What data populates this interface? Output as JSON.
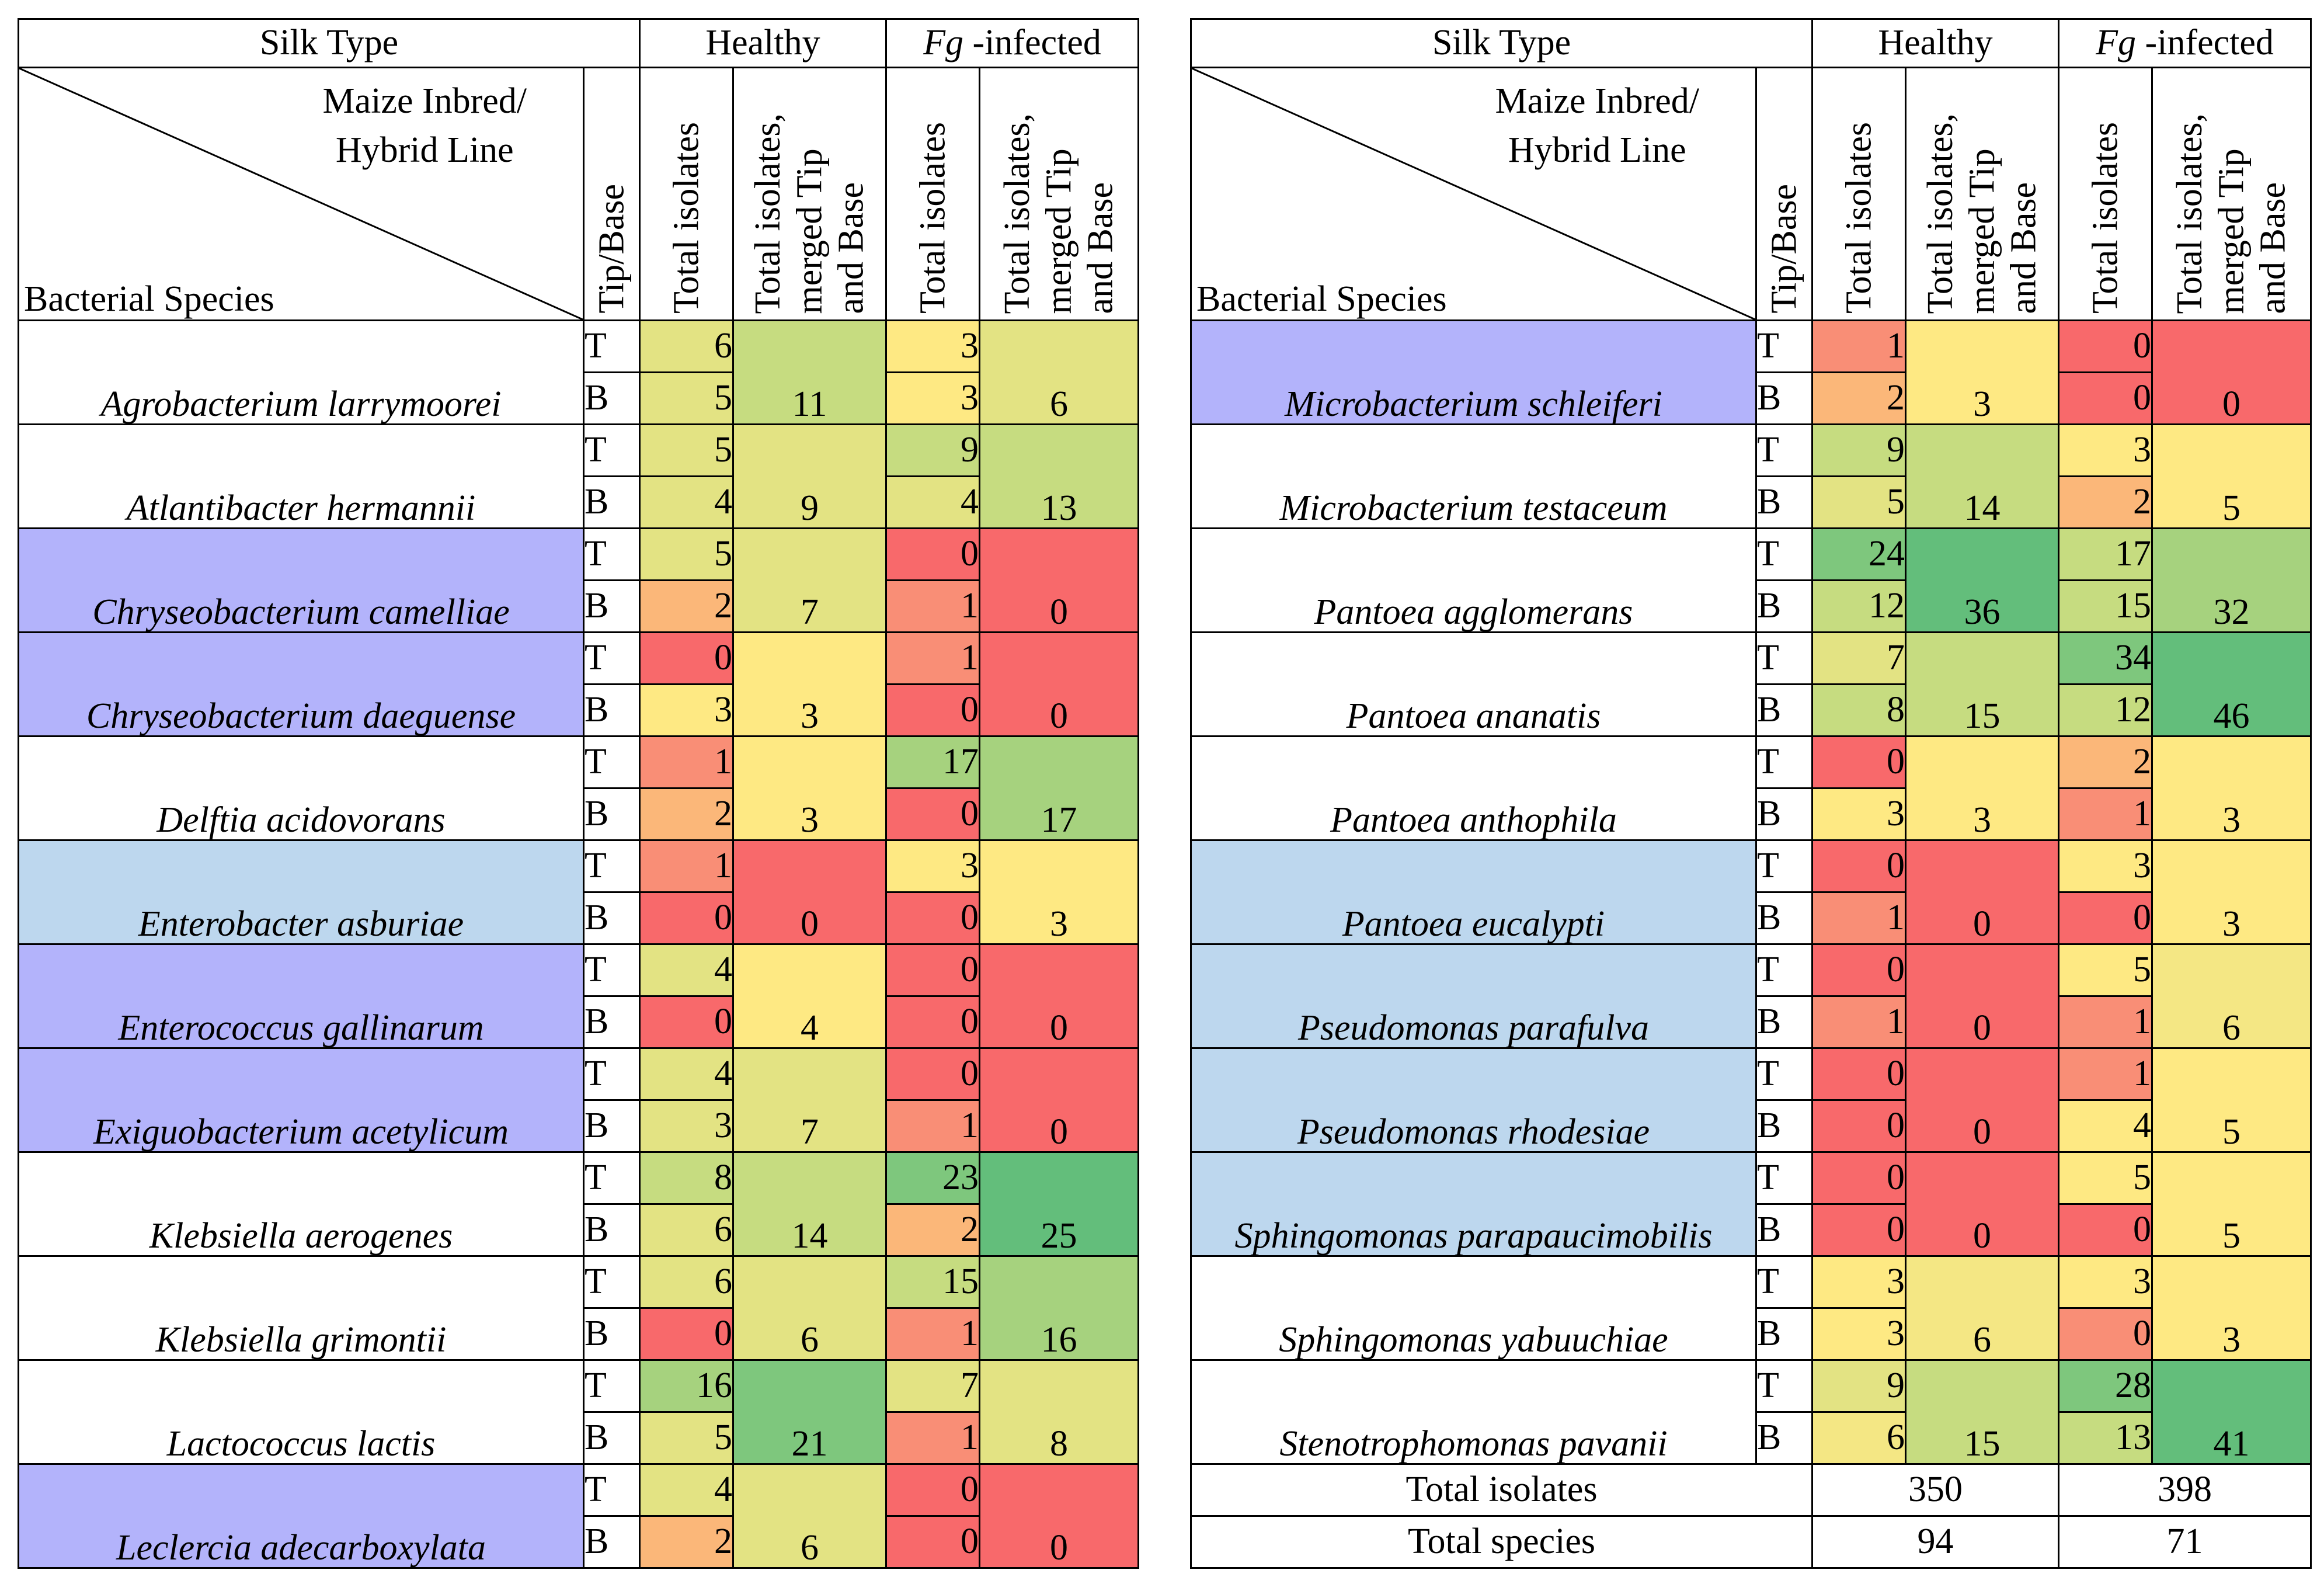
{
  "colors": {
    "red": "#f8696b",
    "orange_red": "#f98e76",
    "orange": "#fbb779",
    "yellow": "#fee983",
    "light_yellow": "#f4e784",
    "yellow_green": "#e3e383",
    "light_green": "#c6dc80",
    "green": "#a6d27e",
    "mid_green": "#7ec77d",
    "dark_green": "#63be7b",
    "purple_highlight": "#b3b3fb",
    "blue_highlight": "#bdd7ee"
  },
  "headers": {
    "silk_type": "Silk Type",
    "healthy": "Healthy",
    "fg_italic": "Fg",
    "fg_rest": " -infected",
    "maize_line1": "Maize Inbred/",
    "maize_line2": "Hybrid Line",
    "bacterial_species": "Bacterial Species",
    "tip_base": "Tip/Base",
    "total_isolates": "Total isolates",
    "merged_line1": "Total isolates,",
    "merged_line2": "merged Tip",
    "merged_line3": "and Base"
  },
  "left_table": {
    "rows": [
      {
        "species": "Agrobacterium larrymoorei",
        "highlight": "none",
        "h_tip": "6",
        "h_base": "5",
        "h_merged": "11",
        "f_tip": "3",
        "f_base": "3",
        "f_merged": "6",
        "c_htip": "yellow_green",
        "c_hbase": "yellow_green",
        "c_hm": "light_green",
        "c_ftip": "yellow",
        "c_fbase": "yellow",
        "c_fm": "yellow_green"
      },
      {
        "species": "Atlantibacter hermannii",
        "highlight": "none",
        "h_tip": "5",
        "h_base": "4",
        "h_merged": "9",
        "f_tip": "9",
        "f_base": "4",
        "f_merged": "13",
        "c_htip": "yellow_green",
        "c_hbase": "yellow_green",
        "c_hm": "yellow_green",
        "c_ftip": "light_green",
        "c_fbase": "yellow_green",
        "c_fm": "light_green"
      },
      {
        "species": "Chryseobacterium camelliae",
        "highlight": "purple",
        "h_tip": "5",
        "h_base": "2",
        "h_merged": "7",
        "f_tip": "0",
        "f_base": "1",
        "f_merged": "0",
        "c_htip": "yellow_green",
        "c_hbase": "orange",
        "c_hm": "yellow_green",
        "c_ftip": "red",
        "c_fbase": "orange_red",
        "c_fm": "red"
      },
      {
        "species": "Chryseobacterium daeguense",
        "highlight": "purple",
        "h_tip": "0",
        "h_base": "3",
        "h_merged": "3",
        "f_tip": "1",
        "f_base": "0",
        "f_merged": "0",
        "c_htip": "red",
        "c_hbase": "yellow",
        "c_hm": "yellow",
        "c_ftip": "orange_red",
        "c_fbase": "red",
        "c_fm": "red"
      },
      {
        "species": "Delftia acidovorans",
        "highlight": "none",
        "h_tip": "1",
        "h_base": "2",
        "h_merged": "3",
        "f_tip": "17",
        "f_base": "0",
        "f_merged": "17",
        "c_htip": "orange_red",
        "c_hbase": "orange",
        "c_hm": "yellow",
        "c_ftip": "green",
        "c_fbase": "red",
        "c_fm": "green"
      },
      {
        "species": "Enterobacter asburiae",
        "highlight": "blue",
        "h_tip": "1",
        "h_base": "0",
        "h_merged": "0",
        "f_tip": "3",
        "f_base": "0",
        "f_merged": "3",
        "c_htip": "orange_red",
        "c_hbase": "red",
        "c_hm": "red",
        "c_ftip": "yellow",
        "c_fbase": "red",
        "c_fm": "yellow"
      },
      {
        "species": "Enterococcus gallinarum",
        "highlight": "purple",
        "h_tip": "4",
        "h_base": "0",
        "h_merged": "4",
        "f_tip": "0",
        "f_base": "0",
        "f_merged": "0",
        "c_htip": "yellow_green",
        "c_hbase": "red",
        "c_hm": "yellow",
        "c_ftip": "red",
        "c_fbase": "red",
        "c_fm": "red"
      },
      {
        "species": "Exiguobacterium acetylicum",
        "highlight": "purple",
        "h_tip": "4",
        "h_base": "3",
        "h_merged": "7",
        "f_tip": "0",
        "f_base": "1",
        "f_merged": "0",
        "c_htip": "yellow_green",
        "c_hbase": "yellow_green",
        "c_hm": "yellow_green",
        "c_ftip": "red",
        "c_fbase": "orange_red",
        "c_fm": "red"
      },
      {
        "species": "Klebsiella aerogenes",
        "highlight": "none",
        "h_tip": "8",
        "h_base": "6",
        "h_merged": "14",
        "f_tip": "23",
        "f_base": "2",
        "f_merged": "25",
        "c_htip": "light_green",
        "c_hbase": "yellow_green",
        "c_hm": "light_green",
        "c_ftip": "mid_green",
        "c_fbase": "orange",
        "c_fm": "dark_green"
      },
      {
        "species": "Klebsiella grimontii",
        "highlight": "none",
        "h_tip": "6",
        "h_base": "0",
        "h_merged": "6",
        "f_tip": "15",
        "f_base": "1",
        "f_merged": "16",
        "c_htip": "yellow_green",
        "c_hbase": "red",
        "c_hm": "yellow_green",
        "c_ftip": "light_green",
        "c_fbase": "orange_red",
        "c_fm": "green"
      },
      {
        "species": "Lactococcus lactis",
        "highlight": "none",
        "h_tip": "16",
        "h_base": "5",
        "h_merged": "21",
        "f_tip": "7",
        "f_base": "1",
        "f_merged": "8",
        "c_htip": "green",
        "c_hbase": "yellow_green",
        "c_hm": "mid_green",
        "c_ftip": "yellow_green",
        "c_fbase": "orange_red",
        "c_fm": "yellow_green"
      },
      {
        "species": "Leclercia adecarboxylata",
        "highlight": "purple",
        "h_tip": "4",
        "h_base": "2",
        "h_merged": "6",
        "f_tip": "0",
        "f_base": "0",
        "f_merged": "0",
        "c_htip": "yellow_green",
        "c_hbase": "orange",
        "c_hm": "yellow_green",
        "c_ftip": "red",
        "c_fbase": "red",
        "c_fm": "red"
      }
    ]
  },
  "right_table": {
    "rows": [
      {
        "species": "Microbacterium schleiferi",
        "highlight": "purple",
        "h_tip": "1",
        "h_base": "2",
        "h_merged": "3",
        "f_tip": "0",
        "f_base": "0",
        "f_merged": "0",
        "c_htip": "orange_red",
        "c_hbase": "orange",
        "c_hm": "yellow",
        "c_ftip": "red",
        "c_fbase": "red",
        "c_fm": "red"
      },
      {
        "species": "Microbacterium testaceum",
        "highlight": "none",
        "h_tip": "9",
        "h_base": "5",
        "h_merged": "14",
        "f_tip": "3",
        "f_base": "2",
        "f_merged": "5",
        "c_htip": "light_green",
        "c_hbase": "yellow_green",
        "c_hm": "light_green",
        "c_ftip": "yellow",
        "c_fbase": "orange",
        "c_fm": "yellow"
      },
      {
        "species": "Pantoea agglomerans",
        "highlight": "none",
        "h_tip": "24",
        "h_base": "12",
        "h_merged": "36",
        "f_tip": "17",
        "f_base": "15",
        "f_merged": "32",
        "c_htip": "mid_green",
        "c_hbase": "light_green",
        "c_hm": "dark_green",
        "c_ftip": "light_green",
        "c_fbase": "light_green",
        "c_fm": "green"
      },
      {
        "species": "Pantoea ananatis",
        "highlight": "none",
        "h_tip": "7",
        "h_base": "8",
        "h_merged": "15",
        "f_tip": "34",
        "f_base": "12",
        "f_merged": "46",
        "c_htip": "yellow_green",
        "c_hbase": "light_green",
        "c_hm": "light_green",
        "c_ftip": "mid_green",
        "c_fbase": "light_green",
        "c_fm": "dark_green"
      },
      {
        "species": "Pantoea anthophila",
        "highlight": "none",
        "h_tip": "0",
        "h_base": "3",
        "h_merged": "3",
        "f_tip": "2",
        "f_base": "1",
        "f_merged": "3",
        "c_htip": "red",
        "c_hbase": "yellow",
        "c_hm": "yellow",
        "c_ftip": "orange",
        "c_fbase": "orange_red",
        "c_fm": "yellow"
      },
      {
        "species": "Pantoea eucalypti",
        "highlight": "blue",
        "h_tip": "0",
        "h_base": "1",
        "h_merged": "0",
        "f_tip": "3",
        "f_base": "0",
        "f_merged": "3",
        "c_htip": "red",
        "c_hbase": "orange_red",
        "c_hm": "red",
        "c_ftip": "yellow",
        "c_fbase": "red",
        "c_fm": "yellow"
      },
      {
        "species": "Pseudomonas parafulva",
        "highlight": "blue",
        "h_tip": "0",
        "h_base": "1",
        "h_merged": "0",
        "f_tip": "5",
        "f_base": "1",
        "f_merged": "6",
        "c_htip": "red",
        "c_hbase": "orange_red",
        "c_hm": "red",
        "c_ftip": "yellow",
        "c_fbase": "orange_red",
        "c_fm": "light_yellow"
      },
      {
        "species": "Pseudomonas rhodesiae",
        "highlight": "blue",
        "h_tip": "0",
        "h_base": "0",
        "h_merged": "0",
        "f_tip": "1",
        "f_base": "4",
        "f_merged": "5",
        "c_htip": "red",
        "c_hbase": "red",
        "c_hm": "red",
        "c_ftip": "orange_red",
        "c_fbase": "yellow",
        "c_fm": "yellow"
      },
      {
        "species": "Sphingomonas parapaucimobilis",
        "highlight": "blue",
        "h_tip": "0",
        "h_base": "0",
        "h_merged": "0",
        "f_tip": "5",
        "f_base": "0",
        "f_merged": "5",
        "c_htip": "red",
        "c_hbase": "red",
        "c_hm": "red",
        "c_ftip": "yellow",
        "c_fbase": "red",
        "c_fm": "yellow"
      },
      {
        "species": "Sphingomonas yabuuchiae",
        "highlight": "none",
        "h_tip": "3",
        "h_base": "3",
        "h_merged": "6",
        "f_tip": "3",
        "f_base": "0",
        "f_merged": "3",
        "c_htip": "yellow",
        "c_hbase": "yellow",
        "c_hm": "light_yellow",
        "c_ftip": "yellow",
        "c_fbase": "orange_red",
        "c_fm": "yellow"
      },
      {
        "species": "Stenotrophomonas pavanii",
        "highlight": "none",
        "h_tip": "9",
        "h_base": "6",
        "h_merged": "15",
        "f_tip": "28",
        "f_base": "13",
        "f_merged": "41",
        "c_htip": "yellow_green",
        "c_hbase": "light_yellow",
        "c_hm": "light_green",
        "c_ftip": "mid_green",
        "c_fbase": "light_green",
        "c_fm": "dark_green"
      }
    ],
    "totals": {
      "isolates_label": "Total isolates",
      "isolates_healthy": "350",
      "isolates_fg": "398",
      "species_label": "Total species",
      "species_healthy": "94",
      "species_fg": "71"
    }
  },
  "tip_label": "T",
  "base_label": "B"
}
